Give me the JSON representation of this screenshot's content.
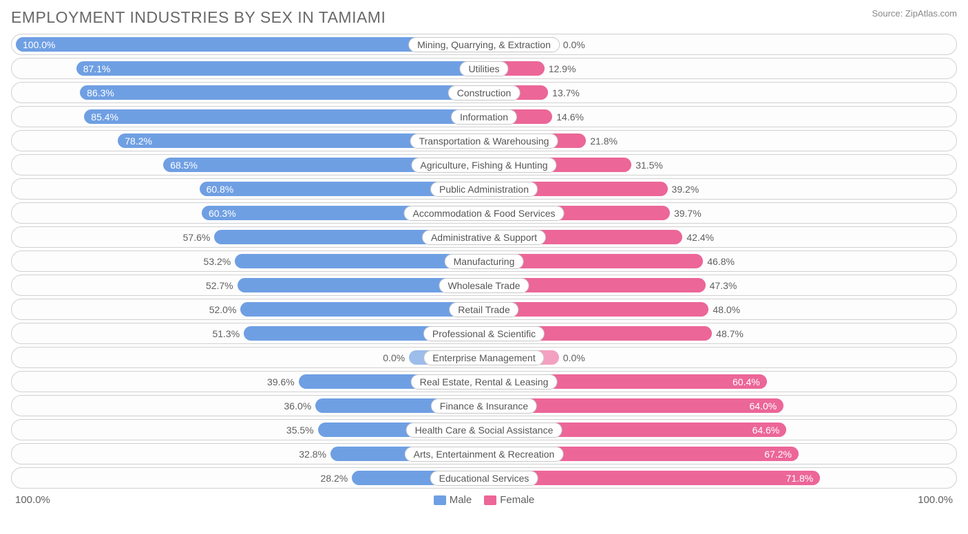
{
  "title": "EMPLOYMENT INDUSTRIES BY SEX IN TAMIAMI",
  "source": "Source: ZipAtlas.com",
  "scale_left": "100.0%",
  "scale_right": "100.0%",
  "colors": {
    "male": "#6f9fe3",
    "male_faded": "#9dbdea",
    "female": "#ec6698",
    "female_faded": "#f3a1c0",
    "row_border": "#d0d0d0",
    "text": "#606060",
    "title_text": "#686868",
    "background": "#ffffff"
  },
  "legend": {
    "male_label": "Male",
    "female_label": "Female"
  },
  "rows": [
    {
      "label": "Mining, Quarrying, & Extraction",
      "male": 100.0,
      "female": 0.0,
      "male_txt": "100.0%",
      "female_txt": "0.0%",
      "male_inside": true,
      "female_inside": false,
      "female_bar": 8
    },
    {
      "label": "Utilities",
      "male": 87.1,
      "female": 12.9,
      "male_txt": "87.1%",
      "female_txt": "12.9%",
      "male_inside": true,
      "female_inside": false
    },
    {
      "label": "Construction",
      "male": 86.3,
      "female": 13.7,
      "male_txt": "86.3%",
      "female_txt": "13.7%",
      "male_inside": true,
      "female_inside": false
    },
    {
      "label": "Information",
      "male": 85.4,
      "female": 14.6,
      "male_txt": "85.4%",
      "female_txt": "14.6%",
      "male_inside": true,
      "female_inside": false
    },
    {
      "label": "Transportation & Warehousing",
      "male": 78.2,
      "female": 21.8,
      "male_txt": "78.2%",
      "female_txt": "21.8%",
      "male_inside": true,
      "female_inside": false
    },
    {
      "label": "Agriculture, Fishing & Hunting",
      "male": 68.5,
      "female": 31.5,
      "male_txt": "68.5%",
      "female_txt": "31.5%",
      "male_inside": true,
      "female_inside": false
    },
    {
      "label": "Public Administration",
      "male": 60.8,
      "female": 39.2,
      "male_txt": "60.8%",
      "female_txt": "39.2%",
      "male_inside": true,
      "female_inside": false
    },
    {
      "label": "Accommodation & Food Services",
      "male": 60.3,
      "female": 39.7,
      "male_txt": "60.3%",
      "female_txt": "39.7%",
      "male_inside": true,
      "female_inside": false
    },
    {
      "label": "Administrative & Support",
      "male": 57.6,
      "female": 42.4,
      "male_txt": "57.6%",
      "female_txt": "42.4%",
      "male_inside": false,
      "female_inside": false
    },
    {
      "label": "Manufacturing",
      "male": 53.2,
      "female": 46.8,
      "male_txt": "53.2%",
      "female_txt": "46.8%",
      "male_inside": false,
      "female_inside": false
    },
    {
      "label": "Wholesale Trade",
      "male": 52.7,
      "female": 47.3,
      "male_txt": "52.7%",
      "female_txt": "47.3%",
      "male_inside": false,
      "female_inside": false
    },
    {
      "label": "Retail Trade",
      "male": 52.0,
      "female": 48.0,
      "male_txt": "52.0%",
      "female_txt": "48.0%",
      "male_inside": false,
      "female_inside": false
    },
    {
      "label": "Professional & Scientific",
      "male": 51.3,
      "female": 48.7,
      "male_txt": "51.3%",
      "female_txt": "48.7%",
      "male_inside": false,
      "female_inside": false
    },
    {
      "label": "Enterprise Management",
      "male": 0.0,
      "female": 0.0,
      "male_txt": "0.0%",
      "female_txt": "0.0%",
      "male_inside": false,
      "female_inside": false,
      "male_bar": 8,
      "female_bar": 8,
      "faded": true
    },
    {
      "label": "Real Estate, Rental & Leasing",
      "male": 39.6,
      "female": 60.4,
      "male_txt": "39.6%",
      "female_txt": "60.4%",
      "male_inside": false,
      "female_inside": true
    },
    {
      "label": "Finance & Insurance",
      "male": 36.0,
      "female": 64.0,
      "male_txt": "36.0%",
      "female_txt": "64.0%",
      "male_inside": false,
      "female_inside": true
    },
    {
      "label": "Health Care & Social Assistance",
      "male": 35.5,
      "female": 64.6,
      "male_txt": "35.5%",
      "female_txt": "64.6%",
      "male_inside": false,
      "female_inside": true
    },
    {
      "label": "Arts, Entertainment & Recreation",
      "male": 32.8,
      "female": 67.2,
      "male_txt": "32.8%",
      "female_txt": "67.2%",
      "male_inside": false,
      "female_inside": true
    },
    {
      "label": "Educational Services",
      "male": 28.2,
      "female": 71.8,
      "male_txt": "28.2%",
      "female_txt": "71.8%",
      "male_inside": false,
      "female_inside": true
    }
  ]
}
